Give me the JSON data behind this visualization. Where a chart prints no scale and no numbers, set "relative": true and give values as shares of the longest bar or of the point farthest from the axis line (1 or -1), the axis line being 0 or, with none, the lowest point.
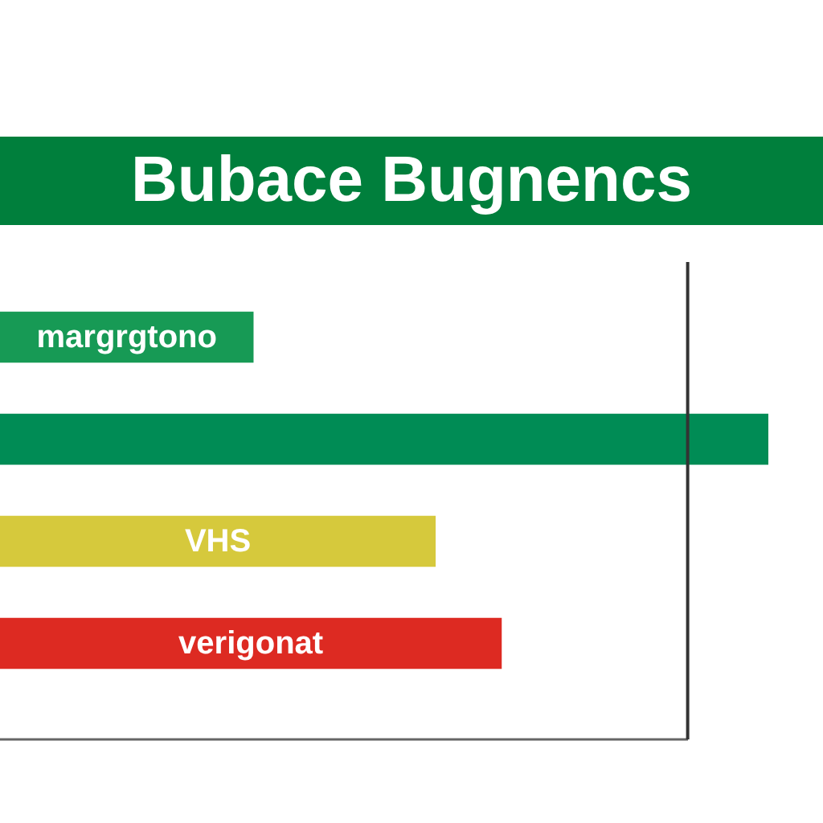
{
  "chart_data": {
    "type": "bar",
    "orientation": "horizontal",
    "relative": true,
    "title": "Bubace Bugnencs",
    "categories": [
      "margrgtono",
      null,
      "VHS",
      "verigonat"
    ],
    "values": [
      0.33,
      1,
      0.567,
      0.653
    ],
    "colors": [
      "#179a55",
      "#008c55",
      "#d6c93c",
      "#dd2a22"
    ],
    "ref_lines": [
      {
        "axis": "x",
        "value": 0.895,
        "color": "#333333"
      }
    ]
  }
}
